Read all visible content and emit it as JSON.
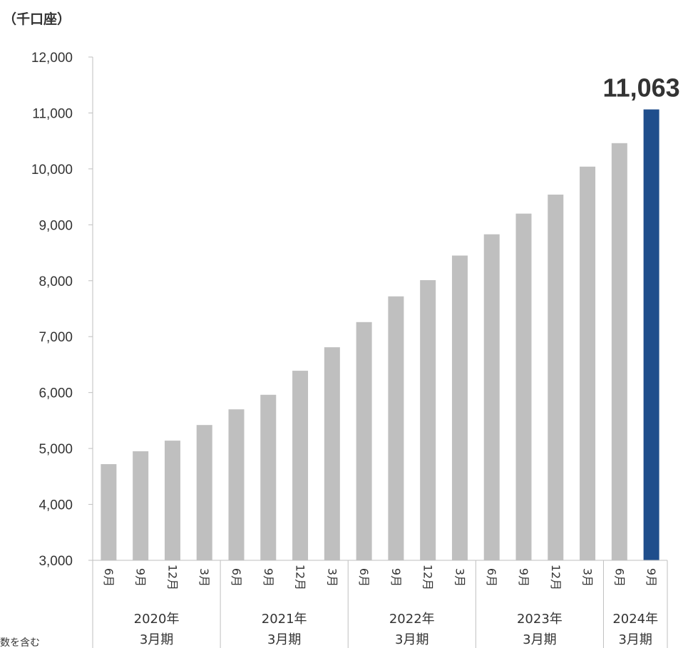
{
  "unit_label": "（千口座）",
  "callout_value": "11,063",
  "footnote_text": "…数を含む",
  "colors": {
    "bar": "#bfbfbf",
    "highlight_bar": "#1f4e8c",
    "axis": "#bfbfbf",
    "text": "#333333"
  },
  "chart_data": {
    "type": "bar",
    "title": "",
    "xlabel": "",
    "ylabel": "（千口座）",
    "ylim": [
      3000,
      12000
    ],
    "yticks": [
      3000,
      4000,
      5000,
      6000,
      7000,
      8000,
      9000,
      10000,
      11000,
      12000
    ],
    "ytick_labels": [
      "3,000",
      "4,000",
      "5,000",
      "6,000",
      "7,000",
      "8,000",
      "9,000",
      "10,000",
      "11,000",
      "12,000"
    ],
    "grid": false,
    "legend": "none",
    "categories": [
      "6月",
      "9月",
      "12月",
      "3月",
      "6月",
      "9月",
      "12月",
      "3月",
      "6月",
      "9月",
      "12月",
      "3月",
      "6月",
      "9月",
      "12月",
      "3月",
      "6月",
      "9月"
    ],
    "groups": [
      {
        "line1": "2020年",
        "line2": "3月期",
        "count": 4
      },
      {
        "line1": "2021年",
        "line2": "3月期",
        "count": 4
      },
      {
        "line1": "2022年",
        "line2": "3月期",
        "count": 4
      },
      {
        "line1": "2023年",
        "line2": "3月期",
        "count": 4
      },
      {
        "line1": "2024年",
        "line2": "3月期",
        "count": 2
      }
    ],
    "values": [
      4720,
      4950,
      5140,
      5420,
      5700,
      5960,
      6390,
      6810,
      7260,
      7720,
      8010,
      8450,
      8830,
      9200,
      9540,
      10040,
      10460,
      11063
    ],
    "highlight_index": 17
  }
}
